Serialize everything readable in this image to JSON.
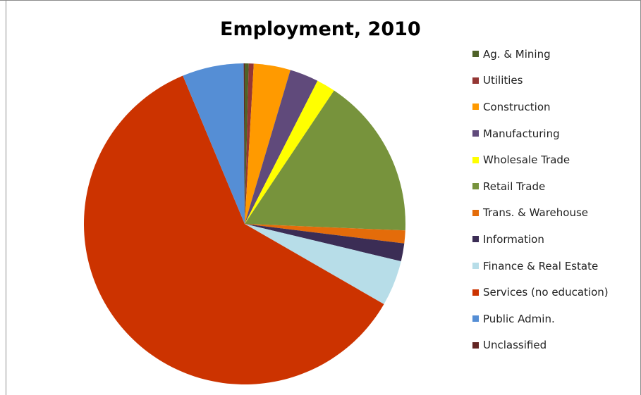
{
  "chart_data": {
    "type": "pie",
    "title": "Employment, 2010",
    "legend_position": "right",
    "slices": [
      {
        "name": "Ag. & Mining",
        "value": 0.4,
        "color": "#4f6228"
      },
      {
        "name": "Utilities",
        "value": 0.5,
        "color": "#943634"
      },
      {
        "name": "Construction",
        "value": 3.7,
        "color": "#ff9a00"
      },
      {
        "name": "Manufacturing",
        "value": 2.9,
        "color": "#604a7b"
      },
      {
        "name": "Wholesale Trade",
        "value": 1.9,
        "color": "#ffff00"
      },
      {
        "name": "Retail Trade",
        "value": 16.3,
        "color": "#77933c"
      },
      {
        "name": "Trans. & Warehouse",
        "value": 1.3,
        "color": "#e46c0a"
      },
      {
        "name": "Information",
        "value": 1.8,
        "color": "#3b2d55"
      },
      {
        "name": "Finance & Real Estate",
        "value": 4.6,
        "color": "#b7dde8"
      },
      {
        "name": "Services (no education)",
        "value": 60.5,
        "color": "#cc3300"
      },
      {
        "name": "Public Admin.",
        "value": 6.2,
        "color": "#558ed5"
      },
      {
        "name": "Unclassified",
        "value": 0.1,
        "color": "#632523"
      }
    ]
  }
}
